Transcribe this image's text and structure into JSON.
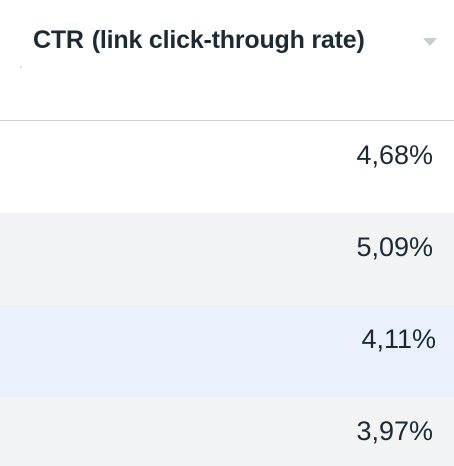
{
  "column": {
    "header_title_main": "CTR",
    "header_title_sub": "(link click-through rate)",
    "sort_icon": "sort-down-icon",
    "header_text_color": "#1c2b33",
    "sort_icon_color": "#c9ccd1"
  },
  "rows": [
    {
      "value": "4,68%",
      "state": "default"
    },
    {
      "value": "5,09%",
      "state": "alternate"
    },
    {
      "value": "4,11%",
      "state": "hovered"
    },
    {
      "value": "3,97%",
      "state": "alternate"
    }
  ],
  "colors": {
    "row_default": "#ffffff",
    "row_alternate": "#f2f3f5",
    "row_hovered": "#eaf1fc",
    "divider": "#cfd2d6"
  }
}
